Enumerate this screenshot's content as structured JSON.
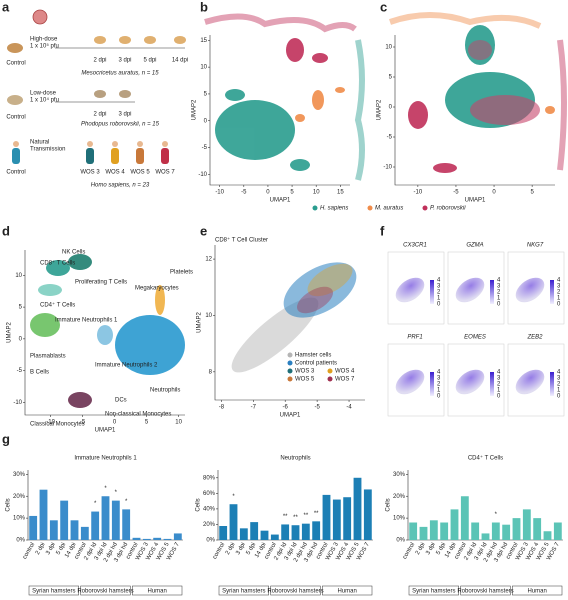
{
  "a": {
    "label": "a",
    "rows": [
      {
        "control": "Control",
        "dose": [
          "High-dose",
          "1 x 10⁵ pfu"
        ],
        "timepoints": [
          "2 dpi",
          "3 dpi",
          "5 dpi",
          "14 dpi"
        ],
        "species": "Mesocricetus auratus, n = 15"
      },
      {
        "control": "Control",
        "dose": [
          "Low-dose",
          "1 x 10⁴ pfu"
        ],
        "timepoints": [
          "2 dpi",
          "3 dpi"
        ],
        "species": "Phodopus roborovskii, n = 15"
      },
      {
        "control": "Control",
        "dose": [
          "Natural",
          "Transmission"
        ],
        "timepoints": [
          "WOS 3",
          "WOS 4",
          "WOS 5",
          "WOS 7"
        ],
        "species": "Homo sapiens, n = 23"
      }
    ]
  },
  "b": {
    "label": "b",
    "xlabel": "UMAP1",
    "ylabel": "UMAP2",
    "xlim": [
      -12,
      17
    ],
    "ylim": [
      -12,
      16
    ],
    "xticks": [
      -10,
      -5,
      0,
      5,
      10,
      15
    ],
    "yticks": [
      -10,
      -5,
      0,
      5,
      10,
      15
    ]
  },
  "c": {
    "label": "c",
    "xlabel": "UMAP1",
    "ylabel": "UMAP2",
    "xlim": [
      -13,
      8
    ],
    "ylim": [
      -13,
      12
    ],
    "xticks": [
      -10,
      -5,
      0,
      5
    ],
    "yticks": [
      -10,
      -5,
      0,
      5,
      10
    ]
  },
  "legend_bc": [
    {
      "name": "H. sapiens",
      "color": "#2a9d8f"
    },
    {
      "name": "M. auratus",
      "color": "#f08c4a"
    },
    {
      "name": "P. roborovskii",
      "color": "#c0305a"
    }
  ],
  "d": {
    "label": "d",
    "xlabel": "UMAP1",
    "ylabel": "UMAP2",
    "xlim": [
      -14,
      11
    ],
    "ylim": [
      -12,
      14
    ],
    "xticks": [
      -10,
      -5,
      0,
      5,
      10
    ],
    "yticks": [
      -10,
      -5,
      0,
      5,
      10
    ],
    "clusters": [
      "NK Cells",
      "CD8⁺ T Cells",
      "Proliferating T Cells",
      "Platelets",
      "Megakaryocytes",
      "CD4⁺ T Cells",
      "Immature Neutrophils 1",
      "Plasmablasts",
      "B Cells",
      "Immature Neutrophils 2",
      "Neutrophils",
      "DCs",
      "Classical Monocytes",
      "Non-classical Monocytes"
    ]
  },
  "e": {
    "label": "e",
    "title": "CD8⁺ T Cell Cluster",
    "xlabel": "UMAP1",
    "ylabel": "UMAP2",
    "xlim": [
      -8.2,
      -3.5
    ],
    "ylim": [
      7,
      12.5
    ],
    "xticks": [
      -8,
      -7,
      -6,
      -5,
      -4
    ],
    "yticks": [
      8,
      10,
      12
    ],
    "legend": [
      {
        "name": "Hamster cells",
        "color": "#b5b5b5"
      },
      {
        "name": "Control patients",
        "color": "#2a7fc0"
      },
      {
        "name": "WOS 3",
        "color": "#1f6f78"
      },
      {
        "name": "WOS 4",
        "color": "#e0a020"
      },
      {
        "name": "WOS 5",
        "color": "#c8783a"
      },
      {
        "name": "WOS 7",
        "color": "#a03050"
      }
    ]
  },
  "f": {
    "label": "f",
    "genes": [
      "CX3CR1",
      "GZMA",
      "NKG7",
      "PRF1",
      "EOMES",
      "ZEB2"
    ],
    "colorbar_ticks": [
      0,
      1,
      2,
      3,
      4
    ]
  },
  "g": {
    "label": "g",
    "ylabel": "Cells",
    "categories": [
      "control",
      "2 dpi",
      "3 dpi",
      "5 dpi",
      "14 dpi",
      "control",
      "2 dpi ld",
      "3 dpi ld",
      "2 dpi hd",
      "3 dpi hd",
      "control",
      "WOS 3",
      "WOS 4",
      "WOS 5",
      "WOS 7"
    ],
    "groups": [
      "Syrian hamsters",
      "Roborovski hamsters",
      "Human"
    ],
    "charts": [
      {
        "title": "Immature Neutrophils 1",
        "color": "#3a8ccb",
        "ylim": [
          0,
          32
        ],
        "yticks": [
          {
            "value": 0,
            "label": "0%"
          },
          {
            "value": 10,
            "label": "10%"
          },
          {
            "value": 20,
            "label": "20%"
          },
          {
            "value": 30,
            "label": "30%"
          }
        ],
        "values": [
          11,
          23,
          9,
          18,
          9,
          6,
          13,
          20,
          18,
          14,
          1,
          0.5,
          1,
          0.5,
          3
        ],
        "stars": [
          null,
          null,
          null,
          null,
          null,
          null,
          "*",
          "*",
          "*",
          "*",
          null,
          null,
          null,
          null,
          null
        ]
      },
      {
        "title": "Neutrophils",
        "color": "#1c7fb5",
        "ylim": [
          0,
          90
        ],
        "yticks": [
          {
            "value": 0,
            "label": "0%"
          },
          {
            "value": 20,
            "label": "20%"
          },
          {
            "value": 40,
            "label": "40%"
          },
          {
            "value": 60,
            "label": "60%"
          },
          {
            "value": 80,
            "label": "80%"
          }
        ],
        "values": [
          18,
          46,
          15,
          23,
          12,
          7,
          20,
          19,
          21,
          24,
          58,
          52,
          55,
          80,
          65
        ],
        "stars": [
          null,
          "*",
          null,
          null,
          null,
          null,
          "**",
          "**",
          "**",
          "**",
          null,
          null,
          null,
          null,
          null
        ]
      },
      {
        "title": "CD4⁺ T Cells",
        "color": "#5bc4b6",
        "ylim": [
          0,
          32
        ],
        "yticks": [
          {
            "value": 0,
            "label": "0%"
          },
          {
            "value": 10,
            "label": "10%"
          },
          {
            "value": 20,
            "label": "20%"
          },
          {
            "value": 30,
            "label": "30%"
          }
        ],
        "values": [
          8,
          6,
          9,
          8,
          14,
          20,
          8,
          3,
          8,
          7,
          10,
          14,
          10,
          4,
          8
        ],
        "stars": [
          null,
          null,
          null,
          null,
          null,
          null,
          null,
          null,
          "*",
          null,
          null,
          null,
          null,
          null,
          null
        ]
      }
    ]
  }
}
